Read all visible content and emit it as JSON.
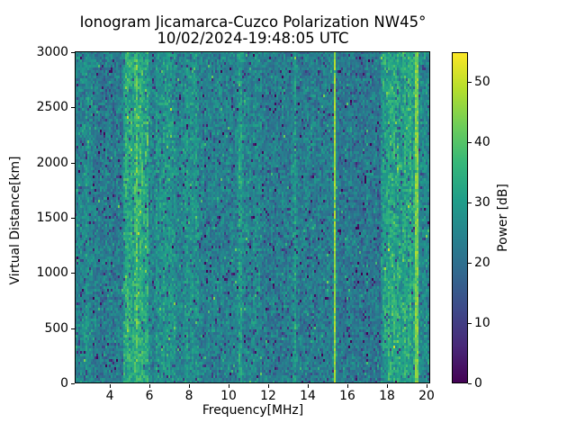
{
  "chart_data": {
    "type": "heatmap",
    "title_line1": "Ionogram Jicamarca-Cuzco Polarization NW45°",
    "title_line2": "10/02/2024-19:48:05 UTC",
    "xlabel": "Frequency[MHz]",
    "ylabel": "Virtual Distance[km]",
    "colorbar_label": "Power [dB]",
    "colormap": "viridis",
    "x_range_mhz": [
      2.2,
      20.2
    ],
    "y_range_km": [
      0,
      3000
    ],
    "color_range_db": [
      0,
      55
    ],
    "x_ticks": [
      4,
      6,
      8,
      10,
      12,
      14,
      16,
      18,
      20
    ],
    "y_ticks": [
      0,
      500,
      1000,
      1500,
      2000,
      2500,
      3000
    ],
    "colorbar_ticks": [
      0,
      10,
      20,
      30,
      40,
      50
    ],
    "grid": false,
    "noise": {
      "base_db": 25,
      "spread_db": 8.5,
      "dark_speckle_prob": 0.07,
      "bright_speckle_prob": 0.015,
      "seed": 20241002
    },
    "features": {
      "enhanced_bands_mhz": [
        {
          "from": 2.75,
          "to": 2.95,
          "delta_db": 2
        },
        {
          "from": 3.1,
          "to": 4.55,
          "delta_db": -2
        },
        {
          "from": 4.65,
          "to": 5.95,
          "delta_db": 8,
          "streaky": true
        },
        {
          "from": 6.3,
          "to": 7.3,
          "delta_db": 3.5
        },
        {
          "from": 7.75,
          "to": 8.45,
          "delta_db": 2.5
        },
        {
          "from": 8.5,
          "to": 10.3,
          "delta_db": -1
        },
        {
          "from": 10.45,
          "to": 10.65,
          "delta_db": 5
        },
        {
          "from": 11.7,
          "to": 13.1,
          "delta_db": -2
        },
        {
          "from": 13.25,
          "to": 13.42,
          "delta_db": 5
        },
        {
          "from": 13.45,
          "to": 15.15,
          "delta_db": -2
        },
        {
          "from": 15.5,
          "to": 17.7,
          "delta_db": -3
        },
        {
          "from": 17.75,
          "to": 19.35,
          "delta_db": 7,
          "streaky": true
        },
        {
          "from": 19.6,
          "to": 20.2,
          "delta_db": 1
        }
      ],
      "rfi_lines_mhz": [
        {
          "freq": 5.32,
          "power_db": 40,
          "jitter_db": 14
        },
        {
          "freq": 15.32,
          "power_db": 47,
          "jitter_db": 7
        },
        {
          "freq": 19.47,
          "power_db": 44,
          "jitter_db": 9
        }
      ]
    }
  }
}
